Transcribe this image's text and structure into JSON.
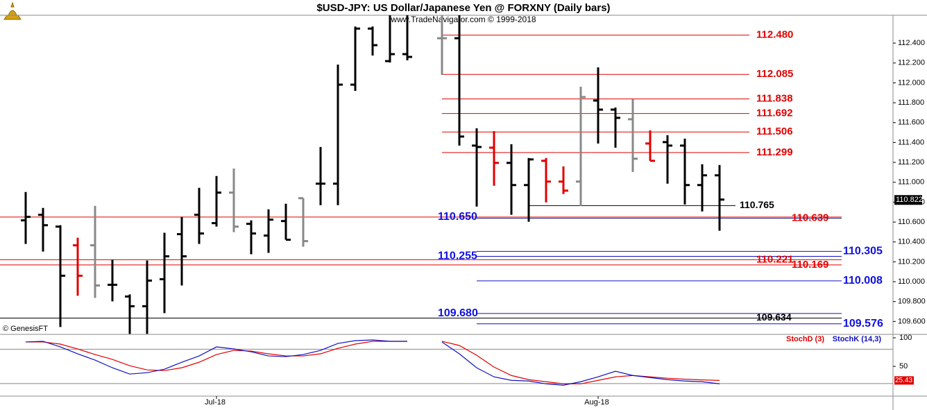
{
  "chart_data": [
    {
      "type": "ohlc",
      "title": "$USD-JPY:  US Dollar/Japanese Yen @ FORXNY  (Daily bars)",
      "subtitle": "www.TradeNavigator.com © 1999-2018",
      "credit": "© GenesisFT",
      "categories": [
        null,
        null,
        null,
        null,
        null,
        null,
        null,
        null,
        null,
        null,
        null,
        "Jul-18",
        null,
        null,
        null,
        null,
        null,
        null,
        null,
        null,
        null,
        null,
        null,
        null,
        null,
        null,
        null,
        null,
        null,
        null,
        null,
        null,
        null,
        "Aug-18",
        null,
        null,
        null,
        null,
        null,
        null,
        null
      ],
      "open": [
        110.617,
        110.673,
        110.554,
        110.366,
        110.366,
        109.969,
        109.851,
        109.753,
        110.025,
        110.478,
        110.673,
        110.589,
        110.896,
        110.582,
        110.464,
        110.61,
        110.84,
        110.986,
        110.986,
        111.982,
        112.546,
        112.219,
        112.289,
        null,
        112.449,
        112.449,
        111.369,
        111.348,
        111.195,
        110.972,
        111.216,
        111.007,
        111.007,
        111.822,
        111.731,
        111.634,
        111.39,
        111.404,
        111.369,
        110.972,
        111.07
      ],
      "high": [
        110.902,
        110.742,
        110.568,
        110.443,
        110.763,
        110.22,
        109.872,
        110.213,
        110.492,
        110.652,
        110.944,
        111.063,
        111.139,
        110.617,
        110.728,
        110.784,
        110.84,
        111.355,
        112.184,
        112.567,
        112.567,
        112.68,
        112.68,
        null,
        112.68,
        112.68,
        111.543,
        111.515,
        111.383,
        111.244,
        111.244,
        111.16,
        111.961,
        112.156,
        111.752,
        111.836,
        111.522,
        111.474,
        111.439,
        111.181,
        111.174
      ],
      "low": [
        110.38,
        110.303,
        109.544,
        109.858,
        109.837,
        109.802,
        109.475,
        109.475,
        109.684,
        109.962,
        110.38,
        110.554,
        110.498,
        110.276,
        110.29,
        110.422,
        110.352,
        110.77,
        110.77,
        111.919,
        112.275,
        112.205,
        112.226,
        null,
        112.08,
        111.369,
        110.756,
        110.965,
        110.673,
        110.603,
        110.798,
        110.882,
        110.763,
        111.39,
        111.348,
        111.104,
        111.216,
        110.986,
        110.777,
        110.707,
        110.512
      ],
      "close": [
        110.652,
        110.568,
        110.06,
        110.06,
        109.962,
        109.969,
        109.753,
        110.011,
        110.255,
        110.255,
        110.485,
        110.896,
        110.554,
        110.485,
        110.624,
        110.422,
        110.408,
        110.986,
        111.982,
        112.546,
        112.379,
        112.289,
        112.261,
        null,
        112.449,
        111.46,
        111.355,
        111.195,
        110.972,
        111.23,
        111.007,
        110.916,
        111.857,
        111.731,
        111.648,
        111.237,
        111.216,
        111.369,
        110.972,
        111.07,
        110.826
      ],
      "bar_colors": [
        "#000",
        "#000",
        "#000",
        "#e00000",
        "#888",
        "#000",
        "#000",
        "#000",
        "#000",
        "#000",
        "#000",
        "#000",
        "#888",
        "#000",
        "#000",
        "#000",
        "#888",
        "#000",
        "#000",
        "#000",
        "#000",
        "#000",
        "#000",
        null,
        "#888",
        "#000",
        "#000",
        "#e00000",
        "#000",
        "#000",
        "#e00000",
        "#e00000",
        "#888",
        "#000",
        "#000",
        "#888",
        "#e00000",
        "#000",
        "#000",
        "#000",
        "#000"
      ],
      "ylim": [
        109.47,
        112.68
      ],
      "yticks": [
        {
          "value": 109.6,
          "label": "109.600"
        },
        {
          "value": 109.8,
          "label": "109.800"
        },
        {
          "value": 110,
          "label": "110.000"
        },
        {
          "value": 110.2,
          "label": "110.200"
        },
        {
          "value": 110.4,
          "label": "110.400"
        },
        {
          "value": 110.6,
          "label": "110.600"
        },
        {
          "value": 110.8,
          "label": "110.800"
        },
        {
          "value": 111,
          "label": "111.000"
        },
        {
          "value": 111.2,
          "label": "111.200"
        },
        {
          "value": 111.4,
          "label": "111.400"
        },
        {
          "value": 111.6,
          "label": "111.600"
        },
        {
          "value": 111.8,
          "label": "111.800"
        },
        {
          "value": 112,
          "label": "112.000"
        },
        {
          "value": 112.2,
          "label": "112.200"
        },
        {
          "value": 112.4,
          "label": "112.400"
        }
      ],
      "levels": [
        {
          "value": 112.48,
          "label": "112.480",
          "line_color": "#e00000",
          "label_color": "#e00000"
        },
        {
          "value": 112.085,
          "label": "112.085",
          "line_color": "#e00000",
          "label_color": "#e00000"
        },
        {
          "value": 111.838,
          "label": "111.838",
          "line_color": "#e00000",
          "label_color": "#e00000"
        },
        {
          "value": 111.692,
          "label": "111.692",
          "line_color": "#e00000",
          "label_color": "#e00000"
        },
        {
          "value": 111.506,
          "label": "111.506",
          "line_color": "#e00000",
          "label_color": "#e00000"
        },
        {
          "value": 111.299,
          "label": "111.299",
          "line_color": "#e00000",
          "label_color": "#e00000"
        },
        {
          "value": 110.765,
          "label": "110.765",
          "line_color": "#000",
          "label_color": "#000"
        },
        {
          "value": 110.65,
          "label": "110.650",
          "line_color": "#e00000",
          "label_color": "#1010e0"
        },
        {
          "value": 110.639,
          "label": "110.639",
          "line_color": "#202080",
          "label_color": "#e00000"
        },
        {
          "value": 110.305,
          "label": "110.305",
          "line_color": "#1010c0",
          "label_color": "#1010e0"
        },
        {
          "value": 110.255,
          "label": "110.255",
          "line_color": "#1010c0",
          "label_color": "#1010e0"
        },
        {
          "value": 110.221,
          "label": "110.221",
          "line_color": "#e00000",
          "label_color": "#e00000"
        },
        {
          "value": 110.169,
          "label": "110.169",
          "line_color": "#e00000",
          "label_color": "#e00000"
        },
        {
          "value": 110.008,
          "label": "110.008",
          "line_color": "#1010c0",
          "label_color": "#1010e0"
        },
        {
          "value": 109.68,
          "label": "109.680",
          "line_color": "#1010c0",
          "label_color": "#1010e0"
        },
        {
          "value": 109.634,
          "label": "109.634",
          "line_color": "#000",
          "label_color": "#000"
        },
        {
          "value": 109.576,
          "label": "109.576",
          "line_color": "#1010c0",
          "label_color": "#1010e0"
        }
      ],
      "last": {
        "value": 110.822,
        "label": "110.822"
      }
    },
    {
      "type": "line",
      "series": [
        {
          "name": "StochD (3)",
          "color": "#e00000",
          "values": [
            92.7,
            92.7,
            89.0,
            80.5,
            70.7,
            62.2,
            51.2,
            43.9,
            42.7,
            47.6,
            57.3,
            70.7,
            78.0,
            76.8,
            72.0,
            68.3,
            68.3,
            72.0,
            81.7,
            89.0,
            93.9,
            93.9,
            93.9,
            null,
            93.9,
            86.6,
            69.5,
            48.8,
            34.1,
            26.8,
            23.2,
            19.5,
            19.5,
            25.6,
            31.7,
            34.1,
            31.7,
            29.3,
            27.6,
            26.4,
            25.43
          ]
        },
        {
          "name": "StochK (14,3)",
          "color": "#1010c0",
          "values": [
            92.7,
            93.9,
            84.1,
            72.0,
            61.0,
            47.6,
            36.6,
            39.0,
            45.1,
            57.3,
            68.3,
            84.1,
            80.5,
            75.6,
            68.3,
            67.1,
            70.7,
            78.0,
            90.2,
            95.1,
            96.3,
            93.9,
            93.9,
            null,
            92.7,
            72.0,
            47.6,
            31.7,
            25.6,
            24.4,
            19.5,
            17.1,
            23.2,
            31.7,
            41.5,
            34.1,
            30.5,
            26.8,
            24.4,
            23.2,
            19.5
          ]
        }
      ],
      "ylim": [
        -2,
        106
      ],
      "yticks": [
        100,
        50
      ],
      "hlines": [
        80,
        20
      ],
      "last": {
        "value": 25.43
      }
    }
  ]
}
